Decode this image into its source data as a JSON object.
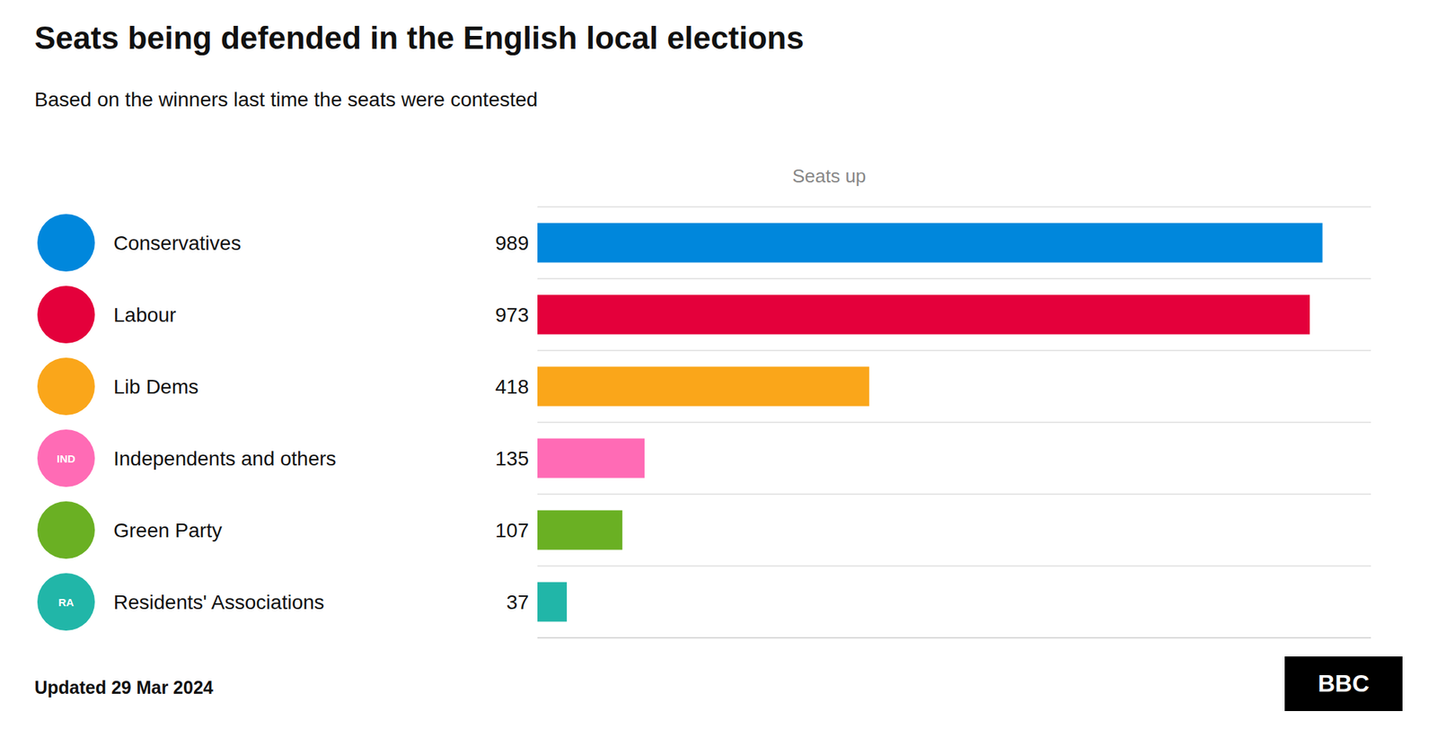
{
  "chart_data": {
    "type": "bar",
    "orientation": "horizontal",
    "title": "Seats being defended in the English local elections",
    "subtitle": "Based on the winners last time the seats were contested",
    "categories": [
      "Conservatives",
      "Labour",
      "Lib Dems",
      "Independents and others",
      "Green Party",
      "Residents' Associations"
    ],
    "values": [
      989,
      973,
      418,
      135,
      107,
      37
    ],
    "colors": [
      "#0087DC",
      "#E4003B",
      "#FAA61A",
      "#FF6BB5",
      "#6AB023",
      "#21B6A8"
    ],
    "icon_labels": [
      null,
      null,
      null,
      "IND",
      null,
      "RA"
    ],
    "xlim": [
      0,
      1050
    ],
    "tick_labels": "y",
    "data_labels": true,
    "grid": true,
    "annotations": {
      "column_header": "Seats up",
      "footer": "Updated 29 Mar 2024",
      "logo": "BBC"
    }
  }
}
